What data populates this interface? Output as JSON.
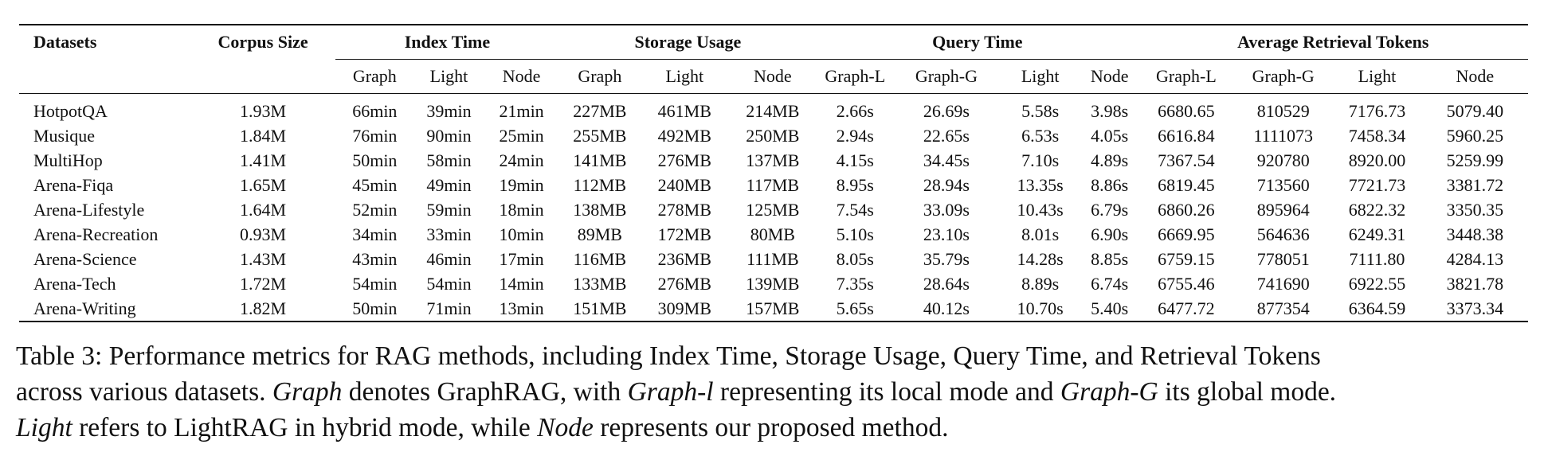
{
  "table": {
    "group_headers": {
      "datasets": "Datasets",
      "corpus_size": "Corpus Size",
      "index_time": "Index Time",
      "storage_usage": "Storage Usage",
      "query_time": "Query Time",
      "avg_tokens": "Average Retrieval Tokens"
    },
    "sub_headers": {
      "index_time": [
        "Graph",
        "Light",
        "Node"
      ],
      "storage_usage": [
        "Graph",
        "Light",
        "Node"
      ],
      "query_time": [
        "Graph-L",
        "Graph-G",
        "Light",
        "Node"
      ],
      "avg_tokens": [
        "Graph-L",
        "Graph-G",
        "Light",
        "Node"
      ]
    },
    "rows": [
      [
        "HotpotQA",
        "1.93M",
        "66min",
        "39min",
        "21min",
        "227MB",
        "461MB",
        "214MB",
        "2.66s",
        "26.69s",
        "5.58s",
        "3.98s",
        "6680.65",
        "810529",
        "7176.73",
        "5079.40"
      ],
      [
        "Musique",
        "1.84M",
        "76min",
        "90min",
        "25min",
        "255MB",
        "492MB",
        "250MB",
        "2.94s",
        "22.65s",
        "6.53s",
        "4.05s",
        "6616.84",
        "1111073",
        "7458.34",
        "5960.25"
      ],
      [
        "MultiHop",
        "1.41M",
        "50min",
        "58min",
        "24min",
        "141MB",
        "276MB",
        "137MB",
        "4.15s",
        "34.45s",
        "7.10s",
        "4.89s",
        "7367.54",
        "920780",
        "8920.00",
        "5259.99"
      ],
      [
        "Arena-Fiqa",
        "1.65M",
        "45min",
        "49min",
        "19min",
        "112MB",
        "240MB",
        "117MB",
        "8.95s",
        "28.94s",
        "13.35s",
        "8.86s",
        "6819.45",
        "713560",
        "7721.73",
        "3381.72"
      ],
      [
        "Arena-Lifestyle",
        "1.64M",
        "52min",
        "59min",
        "18min",
        "138MB",
        "278MB",
        "125MB",
        "7.54s",
        "33.09s",
        "10.43s",
        "6.79s",
        "6860.26",
        "895964",
        "6822.32",
        "3350.35"
      ],
      [
        "Arena-Recreation",
        "0.93M",
        "34min",
        "33min",
        "10min",
        "89MB",
        "172MB",
        "80MB",
        "5.10s",
        "23.10s",
        "8.01s",
        "6.90s",
        "6669.95",
        "564636",
        "6249.31",
        "3448.38"
      ],
      [
        "Arena-Science",
        "1.43M",
        "43min",
        "46min",
        "17min",
        "116MB",
        "236MB",
        "111MB",
        "8.05s",
        "35.79s",
        "14.28s",
        "8.85s",
        "6759.15",
        "778051",
        "7111.80",
        "4284.13"
      ],
      [
        "Arena-Tech",
        "1.72M",
        "54min",
        "54min",
        "14min",
        "133MB",
        "276MB",
        "139MB",
        "7.35s",
        "28.64s",
        "8.89s",
        "6.74s",
        "6755.46",
        "741690",
        "6922.55",
        "3821.78"
      ],
      [
        "Arena-Writing",
        "1.82M",
        "50min",
        "71min",
        "13min",
        "151MB",
        "309MB",
        "157MB",
        "5.65s",
        "40.12s",
        "10.70s",
        "5.40s",
        "6477.72",
        "877354",
        "6364.59",
        "3373.34"
      ]
    ]
  },
  "caption": {
    "line1": "Table 3: Performance metrics for RAG methods, including Index Time, Storage Usage, Query Time, and Retrieval Tokens",
    "l2a": "across various datasets. ",
    "l2b": "Graph",
    "l2c": " denotes GraphRAG, with ",
    "l2d": "Graph-l",
    "l2e": " representing its local mode and ",
    "l2f": "Graph-G",
    "l2g": " its global mode.",
    "l3a": "Light",
    "l3b": " refers to LightRAG in hybrid mode, while ",
    "l3c": "Node",
    "l3d": " represents our proposed method."
  }
}
